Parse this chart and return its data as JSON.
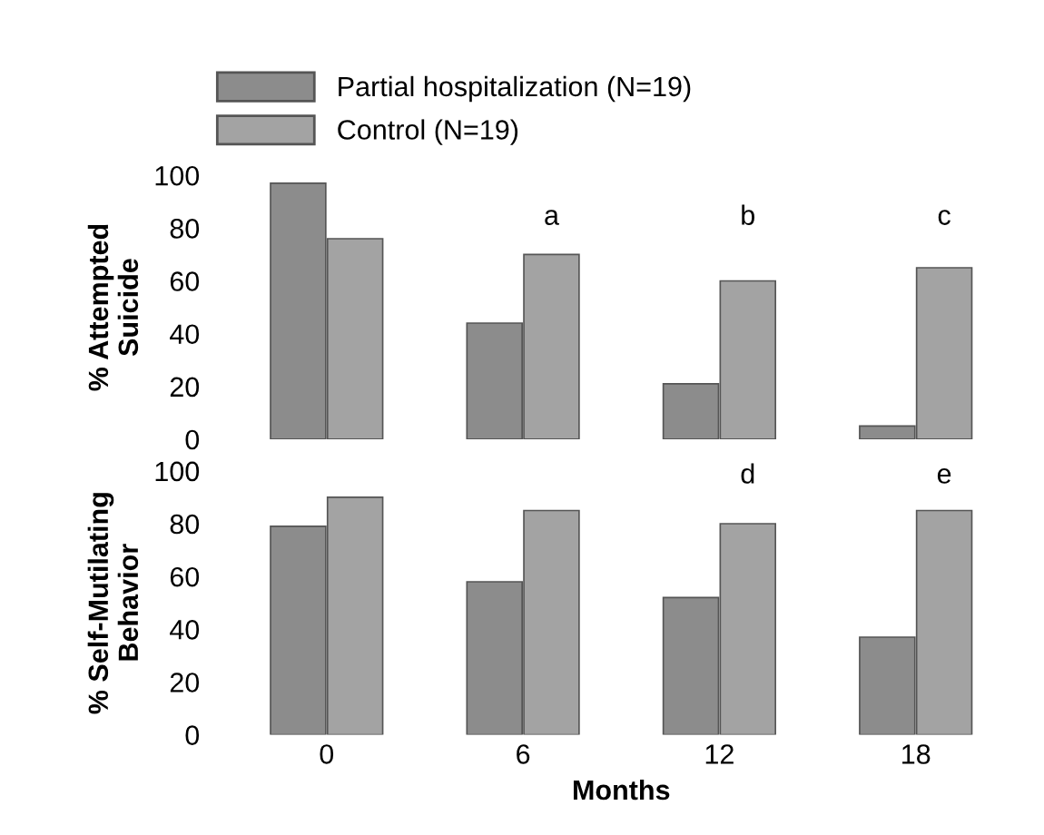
{
  "chart_data": [
    {
      "type": "bar",
      "ylabel": "% Attempted\nSuicide",
      "categories": [
        "0",
        "6",
        "12",
        "18"
      ],
      "series": [
        {
          "name": "Partial hospitalization (N=19)",
          "color": "#8c8c8c",
          "values": [
            97,
            44,
            21,
            5
          ]
        },
        {
          "name": "Control (N=19)",
          "color": "#a3a3a3",
          "values": [
            76,
            70,
            60,
            65
          ]
        }
      ],
      "ylim": [
        0,
        100
      ],
      "yticks": [
        0,
        20,
        40,
        60,
        80,
        100
      ],
      "tick_labels": "y",
      "legend": "top",
      "annotations": [
        "a",
        "b",
        "c"
      ]
    },
    {
      "type": "bar",
      "ylabel": "% Self-Mutilating\nBehavior",
      "xlabel": "Months",
      "categories": [
        "0",
        "6",
        "12",
        "18"
      ],
      "series": [
        {
          "color": "#8c8c8c",
          "values": [
            79,
            58,
            52,
            37
          ]
        },
        {
          "color": "#a3a3a3",
          "values": [
            90,
            85,
            80,
            85
          ]
        }
      ],
      "ylim": [
        0,
        100
      ],
      "yticks": [
        0,
        20,
        40,
        60,
        80,
        100
      ],
      "annotations": [
        "d",
        "e"
      ]
    }
  ]
}
